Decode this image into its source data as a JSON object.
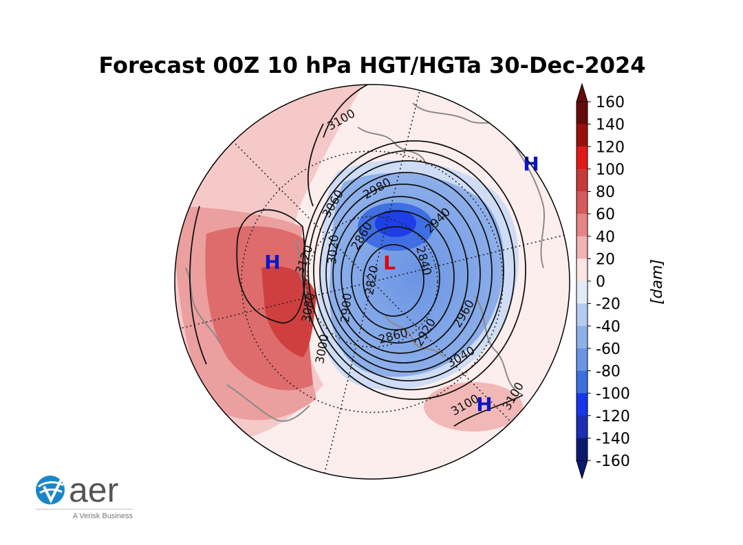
{
  "title": "Forecast 00Z 10 hPa HGT/HGTa 30-Dec-2024",
  "colorbar": {
    "ticks": [
      160,
      140,
      120,
      100,
      80,
      60,
      40,
      20,
      0,
      -20,
      -40,
      -60,
      -80,
      -100,
      -120,
      -140,
      -160
    ],
    "unit_label": "[dam]",
    "range": [
      -160,
      160
    ],
    "colors": {
      "160": "#670a0a",
      "140": "#9b0f0f",
      "120": "#e31818",
      "100": "#c83a3a",
      "80": "#d65a5a",
      "60": "#e58585",
      "40": "#f1b3b3",
      "20": "#fbe4e4",
      "0": "#ffffff",
      "-20": "#e3ebf8",
      "-40": "#b5cbef",
      "-60": "#8eb0ea",
      "-80": "#6a94e4",
      "-100": "#3d6ee0",
      "-120": "#1535ee",
      "-140": "#1a2db3",
      "-160": "#0a1a70"
    }
  },
  "map": {
    "projection": "north polar stereographic",
    "markers": [
      {
        "label": "H",
        "color": "#0b15c8",
        "where": "north-east edge"
      },
      {
        "label": "H",
        "color": "#0b15c8",
        "where": "west ridge"
      },
      {
        "label": "L",
        "color": "#e00000",
        "where": "vortex center"
      },
      {
        "label": "H",
        "color": "#0b15c8",
        "where": "south-east"
      }
    ],
    "contour_labels": [
      "3100",
      "3060",
      "2980",
      "2940",
      "2860",
      "2840",
      "2820",
      "3120",
      "3020",
      "3080",
      "2900",
      "2960",
      "2920",
      "2860",
      "3040",
      "3100",
      "3100",
      "3000"
    ]
  },
  "logo": {
    "word": "aer",
    "tagline": "A Verisk Business"
  }
}
